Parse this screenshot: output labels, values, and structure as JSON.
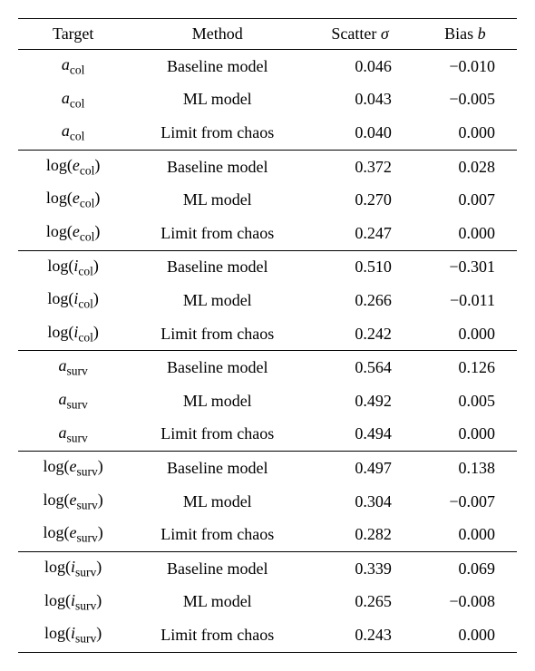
{
  "table": {
    "columns": [
      "Target",
      "Method",
      "Scatter σ",
      "Bias b"
    ],
    "column_widths": [
      "25%",
      "35%",
      "20%",
      "20%"
    ],
    "font_family": "Times New Roman",
    "font_size_pt": 14,
    "text_color": "#000000",
    "background_color": "#ffffff",
    "border_color": "#000000",
    "groups": [
      {
        "target_html": "<span class=\"ital\">a</span><sub>col</sub>",
        "target_plain": "a_col",
        "rows": [
          {
            "method": "Baseline model",
            "scatter": "0.046",
            "bias": "−0.010"
          },
          {
            "method": "ML model",
            "scatter": "0.043",
            "bias": "−0.005"
          },
          {
            "method": "Limit from chaos",
            "scatter": "0.040",
            "bias": "0.000"
          }
        ]
      },
      {
        "target_html": "log(<span class=\"ital\">e</span><sub>col</sub>)",
        "target_plain": "log(e_col)",
        "rows": [
          {
            "method": "Baseline model",
            "scatter": "0.372",
            "bias": "0.028"
          },
          {
            "method": "ML model",
            "scatter": "0.270",
            "bias": "0.007"
          },
          {
            "method": "Limit from chaos",
            "scatter": "0.247",
            "bias": "0.000"
          }
        ]
      },
      {
        "target_html": "log(<span class=\"ital\">i</span><sub>col</sub>)",
        "target_plain": "log(i_col)",
        "rows": [
          {
            "method": "Baseline model",
            "scatter": "0.510",
            "bias": "−0.301"
          },
          {
            "method": "ML model",
            "scatter": "0.266",
            "bias": "−0.011"
          },
          {
            "method": "Limit from chaos",
            "scatter": "0.242",
            "bias": "0.000"
          }
        ]
      },
      {
        "target_html": "<span class=\"ital\">a</span><sub>surv</sub>",
        "target_plain": "a_surv",
        "rows": [
          {
            "method": "Baseline model",
            "scatter": "0.564",
            "bias": "0.126"
          },
          {
            "method": "ML model",
            "scatter": "0.492",
            "bias": "0.005"
          },
          {
            "method": "Limit from chaos",
            "scatter": "0.494",
            "bias": "0.000"
          }
        ]
      },
      {
        "target_html": "log(<span class=\"ital\">e</span><sub>surv</sub>)",
        "target_plain": "log(e_surv)",
        "rows": [
          {
            "method": "Baseline model",
            "scatter": "0.497",
            "bias": "0.138"
          },
          {
            "method": "ML model",
            "scatter": "0.304",
            "bias": "−0.007"
          },
          {
            "method": "Limit from chaos",
            "scatter": "0.282",
            "bias": "0.000"
          }
        ]
      },
      {
        "target_html": "log(<span class=\"ital\">i</span><sub>surv</sub>)",
        "target_plain": "log(i_surv)",
        "rows": [
          {
            "method": "Baseline model",
            "scatter": "0.339",
            "bias": "0.069"
          },
          {
            "method": "ML model",
            "scatter": "0.265",
            "bias": "−0.008"
          },
          {
            "method": "Limit from chaos",
            "scatter": "0.243",
            "bias": "0.000"
          }
        ]
      }
    ]
  }
}
